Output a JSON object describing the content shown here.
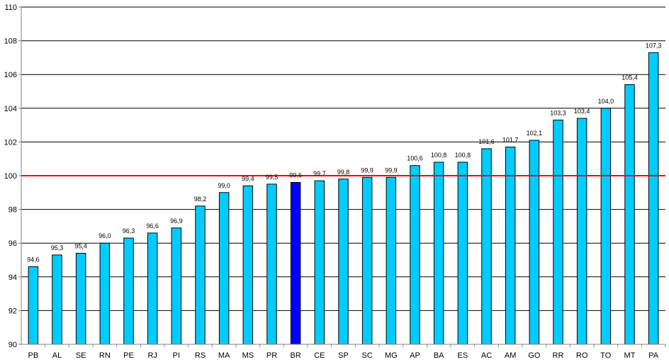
{
  "chart_data": {
    "type": "bar",
    "title": "",
    "xlabel": "",
    "ylabel": "",
    "ylim": [
      90,
      110
    ],
    "yticks": [
      90,
      92,
      94,
      96,
      98,
      100,
      102,
      104,
      106,
      108,
      110
    ],
    "grid": true,
    "reference_line": {
      "value": 100,
      "color": "#ff0000"
    },
    "categories": [
      "PB",
      "AL",
      "SE",
      "RN",
      "PE",
      "RJ",
      "PI",
      "RS",
      "MA",
      "MS",
      "PR",
      "BR",
      "CE",
      "SP",
      "SC",
      "MG",
      "AP",
      "BA",
      "ES",
      "AC",
      "AM",
      "GO",
      "RR",
      "RO",
      "TO",
      "MT",
      "PA"
    ],
    "values": [
      94.6,
      95.3,
      95.4,
      96.0,
      96.3,
      96.6,
      96.9,
      98.2,
      99.0,
      99.4,
      99.5,
      99.6,
      99.7,
      99.8,
      99.9,
      99.9,
      100.6,
      100.8,
      100.8,
      101.6,
      101.7,
      102.1,
      103.3,
      103.4,
      104.0,
      105.4,
      107.3
    ],
    "value_labels": [
      "94,6",
      "95,3",
      "95,4",
      "96,0",
      "96,3",
      "96,6",
      "96,9",
      "98,2",
      "99,0",
      "99,4",
      "99,5",
      "99,6",
      "99,7",
      "99,8",
      "99,9",
      "99,9",
      "100,6",
      "100,8",
      "100,8",
      "101,6",
      "101,7",
      "102,1",
      "103,3",
      "103,4",
      "104,0",
      "105,4",
      "107,3"
    ],
    "highlight_category": "BR",
    "colors": {
      "bar": "#00ccff",
      "highlight_bar": "#0000ff",
      "bar_stroke": "#000000",
      "grid": "#000000",
      "axis": "#808080"
    }
  }
}
